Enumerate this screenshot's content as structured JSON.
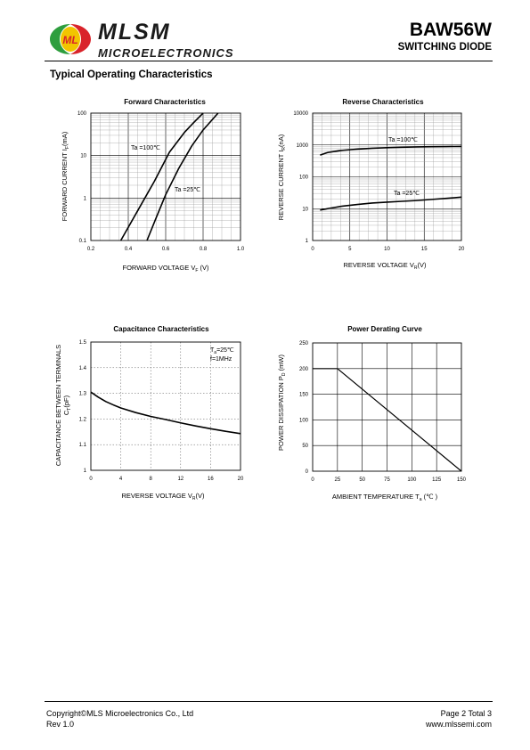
{
  "header": {
    "brand": "MLSM",
    "brand_sub": "MICROELECTRONICS",
    "logo_icon": "mlsm-logo-icon",
    "logo_colors": {
      "green": "#2e9e3e",
      "red": "#d9232a",
      "yellow": "#f2c500"
    },
    "part_number": "BAW56W",
    "part_description": "SWITCHING DIODE"
  },
  "section_title": "Typical Operating Characteristics",
  "footer": {
    "copyright": "Copyright©MLS Microelectronics Co., Ltd",
    "revision": "Rev 1.0",
    "page_info": "Page 2 Total 3",
    "website": "www.mlssemi.com"
  },
  "chart_data": [
    {
      "type": "line",
      "title": "Forward  Characteristics",
      "xlabel": "FORWARD VOLTAGE  V",
      "xlabel_sub": "F",
      "xlabel_unit": " (V)",
      "ylabel": "FORWARD CURRENT   I",
      "ylabel_sub": "F",
      "ylabel_unit": "(mA)",
      "xlim": [
        0.2,
        1.0
      ],
      "ylim": [
        0.1,
        100
      ],
      "yscale": "log",
      "xticks": [
        "0.2",
        "0.4",
        "0.6",
        "0.8",
        "1.0"
      ],
      "yticks": [
        "0.1",
        "1",
        "10",
        "100"
      ],
      "grid": true,
      "series": [
        {
          "name": "Ta =100℃",
          "x": [
            0.36,
            0.45,
            0.54,
            0.62,
            0.7,
            0.75,
            0.8
          ],
          "y": [
            0.1,
            0.5,
            2.5,
            12,
            35,
            60,
            100
          ]
        },
        {
          "name": "Ta =25℃",
          "x": [
            0.5,
            0.55,
            0.6,
            0.67,
            0.74,
            0.8,
            0.88
          ],
          "y": [
            0.1,
            0.35,
            1.2,
            5,
            17,
            40,
            100
          ]
        }
      ]
    },
    {
      "type": "line",
      "title": "Reverse  Characteristics",
      "xlabel": "REVERSE VOLTAGE    V",
      "xlabel_sub": "R",
      "xlabel_unit": "(V)",
      "ylabel": "REVERSE CURRENT   I",
      "ylabel_sub": "R",
      "ylabel_unit": "(nA)",
      "xlim": [
        0,
        20
      ],
      "ylim": [
        1,
        10000
      ],
      "yscale": "log",
      "xticks": [
        "0",
        "5",
        "10",
        "15",
        "20"
      ],
      "yticks": [
        "1",
        "10",
        "100",
        "1000",
        "10000"
      ],
      "grid": true,
      "series": [
        {
          "name": "Ta =100℃",
          "x": [
            1,
            2,
            4,
            6,
            8,
            10,
            12,
            14,
            16,
            18,
            20
          ],
          "y": [
            480,
            580,
            680,
            740,
            790,
            820,
            850,
            870,
            880,
            890,
            900
          ]
        },
        {
          "name": "Ta =25℃",
          "x": [
            1,
            2,
            4,
            6,
            8,
            10,
            12,
            14,
            16,
            18,
            20
          ],
          "y": [
            9,
            10,
            12,
            13.5,
            15,
            16,
            17,
            18,
            19.5,
            21,
            23
          ]
        }
      ]
    },
    {
      "type": "line",
      "title": "Capacitance Characteristics",
      "xlabel": "REVERSE VOLTAGE  V",
      "xlabel_sub": "R",
      "xlabel_unit": "(V)",
      "ylabel": "CAPACITANCE BETWEEN TERMINALS",
      "ylabel2": "C",
      "ylabel2_sub": "T",
      "ylabel2_unit": "(pF)",
      "xlim": [
        0,
        20
      ],
      "ylim": [
        1,
        1.5
      ],
      "xticks": [
        "0",
        "4",
        "8",
        "12",
        "16",
        "20"
      ],
      "yticks": [
        "1",
        "1.1",
        "1.2",
        "1.3",
        "1.4",
        "1.5"
      ],
      "grid": true,
      "annotation": {
        "line1_main": "T",
        "line1_sub": "a",
        "line1_rest": "=25℃",
        "line2": "f=1MHz"
      },
      "series": [
        {
          "x": [
            0,
            1,
            2,
            3,
            4,
            6,
            8,
            10,
            12,
            14,
            16,
            18,
            20
          ],
          "y": [
            1.305,
            1.285,
            1.268,
            1.255,
            1.243,
            1.225,
            1.21,
            1.198,
            1.185,
            1.173,
            1.162,
            1.152,
            1.143
          ]
        }
      ]
    },
    {
      "type": "line",
      "title": "Power Derating Curve",
      "xlabel": "AMBIENT TEMPERATURE     T",
      "xlabel_sub": "a",
      "xlabel_unit": "  (℃ )",
      "ylabel": "POWER  DISSIPATION  P",
      "ylabel_sub": "D",
      "ylabel_unit": " (mW)",
      "xlim": [
        0,
        150
      ],
      "ylim": [
        0,
        250
      ],
      "xticks": [
        "0",
        "25",
        "50",
        "75",
        "100",
        "125",
        "150"
      ],
      "yticks": [
        "0",
        "50",
        "100",
        "150",
        "200",
        "250"
      ],
      "grid": true,
      "series": [
        {
          "x": [
            0,
            25,
            150
          ],
          "y": [
            200,
            200,
            0
          ]
        }
      ]
    }
  ]
}
